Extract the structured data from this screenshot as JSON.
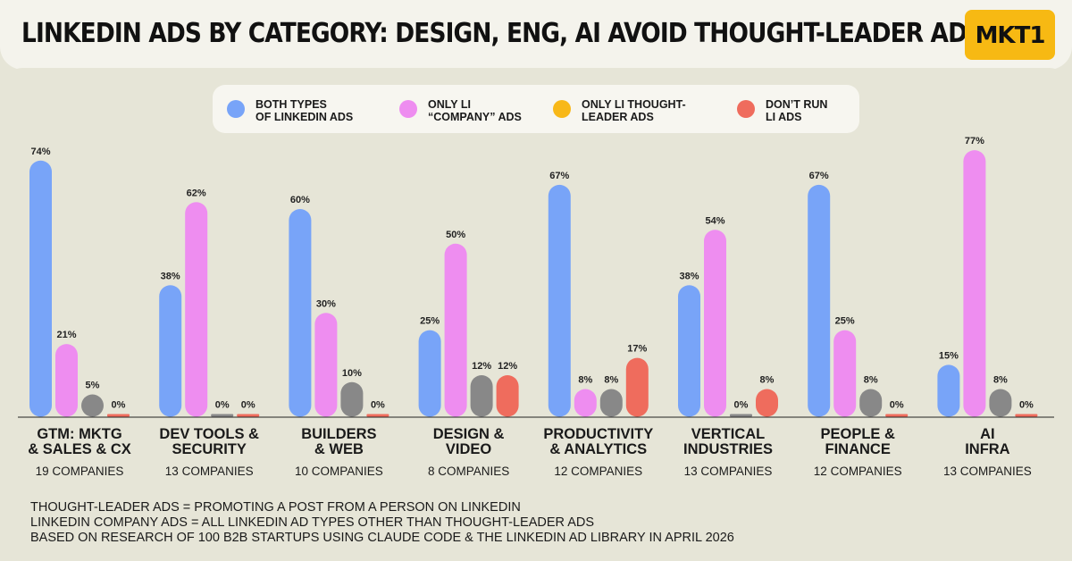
{
  "header": {
    "title": "LINKEDIN ADS BY CATEGORY: DESIGN, ENG, AI AVOID THOUGHT-LEADER ADS",
    "logo": "MKT1"
  },
  "colors": {
    "both": "#78a4f8",
    "company": "#ee8df0",
    "thought_leader": "#f8b818",
    "none": "#ef6c5d"
  },
  "legend": [
    {
      "label": "BOTH TYPES\nOF LINKEDIN ADS",
      "color": "#78a4f8"
    },
    {
      "label": "ONLY LI\n“COMPANY” ADS",
      "color": "#ee8df0"
    },
    {
      "label": "ONLY LI THOUGHT-\nLEADER ADS",
      "color": "#f8b818"
    },
    {
      "label": "DON’T RUN\nLI ADS",
      "color": "#ef6c5d"
    }
  ],
  "chart_data": {
    "type": "bar",
    "title": "LINKEDIN ADS BY CATEGORY: DESIGN, ENG, AI AVOID THOUGHT-LEADER ADS",
    "ylim": [
      0,
      80
    ],
    "value_suffix": "%",
    "series": [
      {
        "name": "BOTH TYPES OF LINKEDIN ADS",
        "values": [
          74,
          38,
          60,
          25,
          67,
          38,
          67,
          15
        ]
      },
      {
        "name": "ONLY LI “COMPANY” ADS",
        "values": [
          21,
          62,
          30,
          50,
          8,
          54,
          25,
          77
        ]
      },
      {
        "name": "ONLY LI THOUGHT-LEADER ADS",
        "values": [
          5,
          0,
          10,
          12,
          8,
          0,
          8,
          8
        ]
      },
      {
        "name": "DON’T RUN LI ADS",
        "values": [
          0,
          0,
          0,
          12,
          17,
          8,
          0,
          0
        ]
      }
    ],
    "categories": [
      {
        "line1": "GTM: MKTG",
        "line2": "& SALES & CX",
        "count": "19 COMPANIES"
      },
      {
        "line1": "DEV TOOLS &",
        "line2": "SECURITY",
        "count": "13 COMPANIES"
      },
      {
        "line1": "BUILDERS",
        "line2": "& WEB",
        "count": "10 COMPANIES"
      },
      {
        "line1": "DESIGN &",
        "line2": "VIDEO",
        "count": "8 COMPANIES"
      },
      {
        "line1": "PRODUCTIVITY",
        "line2": "& ANALYTICS",
        "count": "12 COMPANIES"
      },
      {
        "line1": "VERTICAL",
        "line2": "INDUSTRIES",
        "count": "13 COMPANIES"
      },
      {
        "line1": "PEOPLE &",
        "line2": "FINANCE",
        "count": "12 COMPANIES"
      },
      {
        "line1": "AI",
        "line2": "INFRA",
        "count": "13 COMPANIES"
      }
    ]
  },
  "footnotes": [
    "THOUGHT-LEADER ADS = PROMOTING A POST FROM A PERSON ON LINKEDIN",
    "LINKEDIN COMPANY ADS = ALL LINKEDIN AD TYPES OTHER THAN THOUGHT-LEADER ADS",
    "BASED ON RESEARCH OF 100 B2B STARTUPS USING CLAUDE CODE & THE LINKEDIN AD LIBRARY IN APRIL 2026"
  ]
}
